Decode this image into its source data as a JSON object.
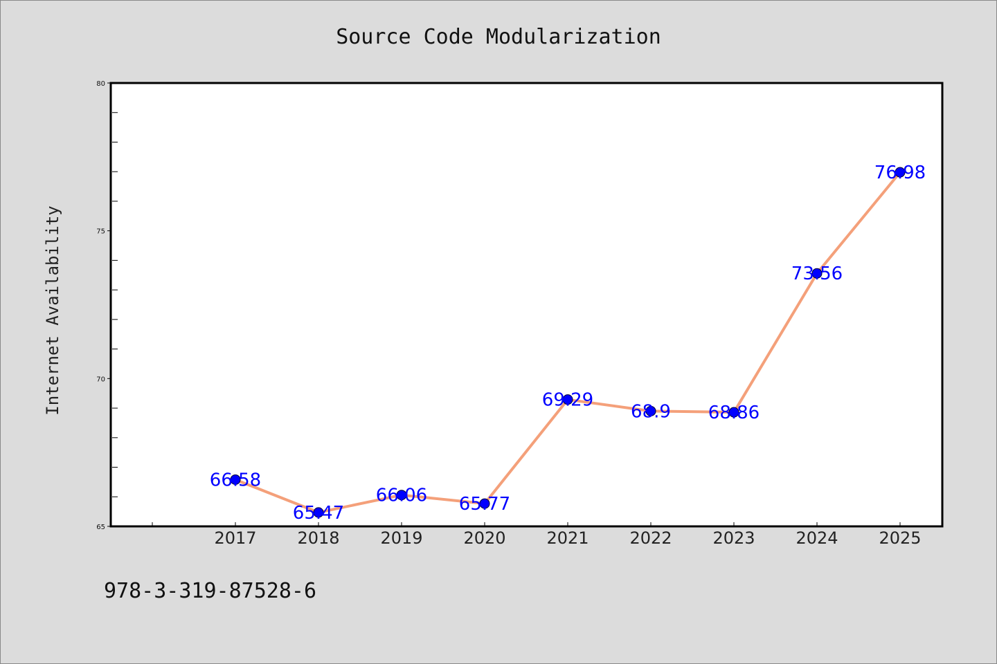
{
  "chart_data": {
    "type": "line",
    "title": "Source Code Modularization",
    "xlabel": "",
    "ylabel": "Internet Availability",
    "categories": [
      "2017",
      "2018",
      "2019",
      "2020",
      "2021",
      "2022",
      "2023",
      "2024",
      "2025"
    ],
    "series": [
      {
        "values": [
          66.58,
          65.47,
          66.06,
          65.77,
          69.29,
          68.9,
          68.86,
          73.56,
          76.98
        ],
        "labels": [
          "66.58",
          "65.47",
          "66.06",
          "65.77",
          "69.29",
          "68.9",
          "68.86",
          "73.56",
          "76.98"
        ]
      }
    ],
    "ylim": [
      65,
      80
    ],
    "yticks": [
      "65",
      "70",
      "75",
      "80"
    ],
    "grid": false,
    "legend": "none",
    "colors": {
      "line": "#f4a07a",
      "marker": "#0000ff",
      "label": "#0000ff",
      "background": "#dcdcdc",
      "plot_background": "#ffffff"
    }
  },
  "footnote": "978-3-319-87528-6"
}
